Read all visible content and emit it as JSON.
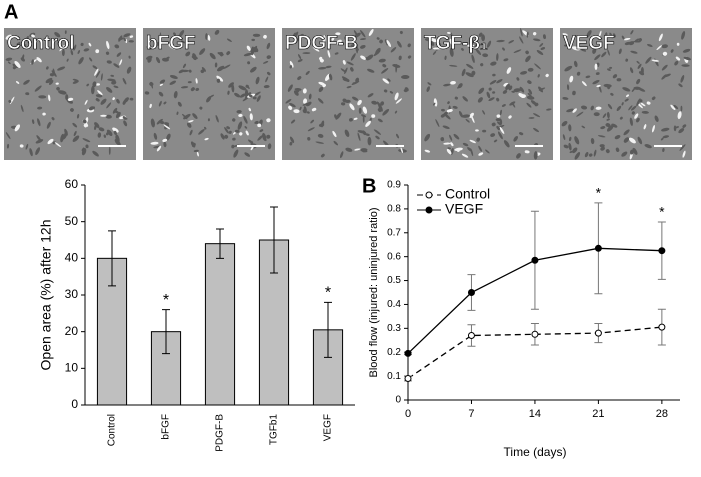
{
  "panel_labels": [
    "A",
    "B"
  ],
  "micrographs": {
    "labels": [
      "Control",
      "bFGF",
      "PDGF-B",
      "TGF-β₁",
      "VEGF"
    ]
  },
  "chart_data": [
    {
      "type": "bar",
      "ylabel": "Open area (%) after 12h",
      "categories": [
        "Control",
        "bFGF",
        "PDGF-B",
        "TGFb1",
        "VEGF"
      ],
      "values": [
        40,
        20,
        44,
        45,
        20.5
      ],
      "errors": [
        7.5,
        6,
        4,
        9,
        7.5
      ],
      "significance": [
        null,
        "*",
        null,
        null,
        "*"
      ],
      "color": "#bfbfbf",
      "ylim": [
        0,
        60
      ],
      "yticks": [
        0,
        10,
        20,
        30,
        40,
        50,
        60
      ]
    },
    {
      "type": "line",
      "xlabel": "Time (days)",
      "ylabel": "Blood flow (injured: uninjured ratio)",
      "x": [
        0,
        7,
        14,
        21,
        28
      ],
      "series": [
        {
          "name": "Control",
          "color": "#000000",
          "line_style": "dashed",
          "marker_fill": "#ffffff",
          "values": [
            0.09,
            0.27,
            0.275,
            0.28,
            0.305
          ],
          "errors": [
            0.01,
            0.045,
            0.045,
            0.04,
            0.075
          ]
        },
        {
          "name": "VEGF",
          "color": "#000000",
          "line_style": "solid",
          "marker_fill": "#000000",
          "values": [
            0.195,
            0.45,
            0.585,
            0.635,
            0.625
          ],
          "errors": [
            0.005,
            0.075,
            0.205,
            0.19,
            0.12
          ]
        }
      ],
      "significance": [
        null,
        null,
        null,
        "*",
        "*"
      ],
      "xlim": [
        0,
        30
      ],
      "xticks": [
        0,
        7,
        14,
        21,
        28
      ],
      "ylim": [
        0,
        0.9
      ],
      "yticks": [
        0,
        0.1,
        0.2,
        0.3,
        0.4,
        0.5,
        0.6,
        0.7,
        0.8,
        0.9
      ],
      "legend": "upper left"
    }
  ]
}
